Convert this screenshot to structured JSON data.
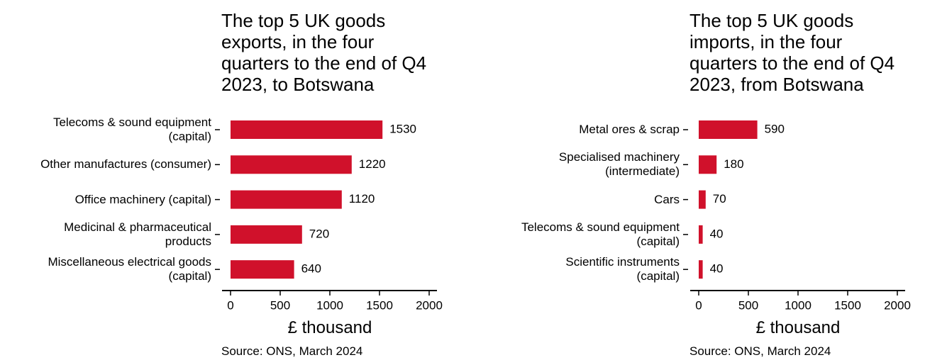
{
  "chart_data": [
    {
      "type": "bar",
      "orientation": "horizontal",
      "title": "The top 5 UK goods\nexports, in the four\nquarters to the end of Q4\n2023, to Botswana",
      "categories": [
        "Telecoms & sound equipment\n(capital)",
        "Other manufactures (consumer)",
        "Office machinery (capital)",
        "Medicinal & pharmaceutical\nproducts",
        "Miscellaneous electrical goods\n(capital)"
      ],
      "values": [
        1530,
        1220,
        1120,
        720,
        640
      ],
      "color": "#d0112b",
      "xlim": [
        0,
        2000
      ],
      "xticks": [
        0,
        500,
        1000,
        1500,
        2000
      ],
      "x_label": "£ thousand",
      "source": "Source: ONS, March 2024"
    },
    {
      "type": "bar",
      "orientation": "horizontal",
      "title": "The top 5 UK goods\nimports, in the four\nquarters to the end of Q4\n2023, from Botswana",
      "categories": [
        "Metal ores & scrap",
        "Specialised machinery\n(intermediate)",
        "Cars",
        "Telecoms & sound equipment\n(capital)",
        "Scientific instruments\n(capital)"
      ],
      "values": [
        590,
        180,
        70,
        40,
        40
      ],
      "color": "#d0112b",
      "xlim": [
        0,
        2000
      ],
      "xticks": [
        0,
        500,
        1000,
        1500,
        2000
      ],
      "x_label": "£ thousand",
      "source": "Source: ONS, March 2024"
    }
  ]
}
